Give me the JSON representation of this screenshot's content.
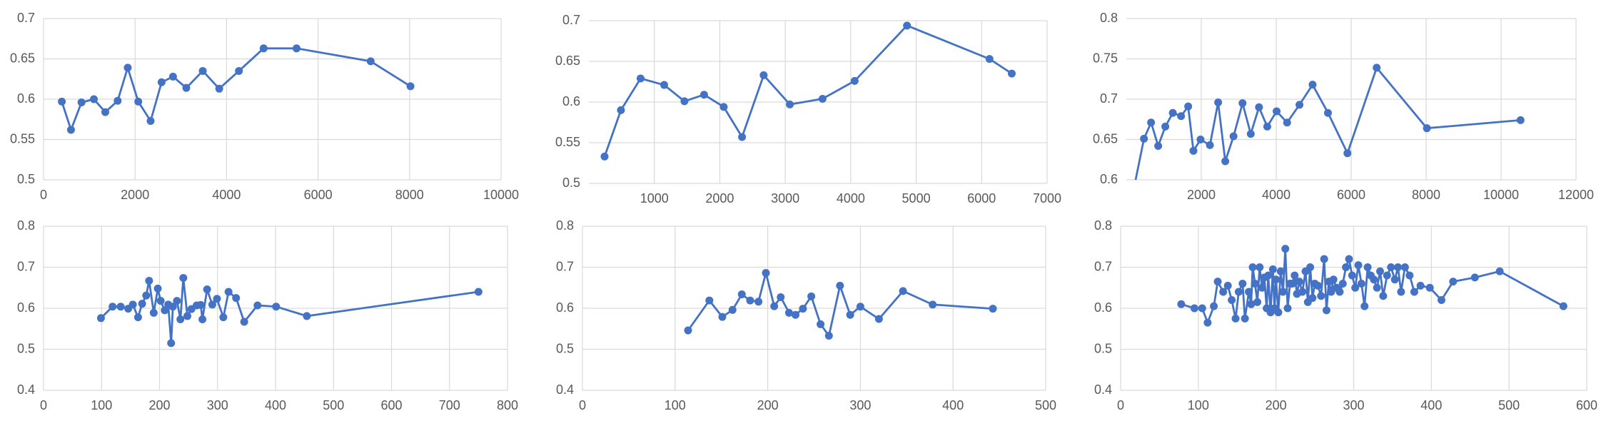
{
  "chart_data": [
    {
      "type": "line",
      "color": "#4472c4",
      "grid": true,
      "x": [
        400,
        600,
        830,
        1100,
        1350,
        1620,
        1840,
        2070,
        2340,
        2580,
        2830,
        3120,
        3480,
        3840,
        4270,
        4810,
        5530,
        7150,
        8020
      ],
      "values": [
        0.597,
        0.562,
        0.596,
        0.6,
        0.584,
        0.598,
        0.639,
        0.597,
        0.573,
        0.621,
        0.628,
        0.614,
        0.635,
        0.613,
        0.635,
        0.663,
        0.663,
        0.647,
        0.616
      ],
      "xlim": [
        0,
        10000
      ],
      "xticks": [
        0,
        2000,
        4000,
        6000,
        8000,
        10000
      ],
      "ylim": [
        0.5,
        0.7
      ],
      "yticks": [
        0.5,
        0.55,
        0.6,
        0.65,
        0.7
      ]
    },
    {
      "type": "line",
      "color": "#4472c4",
      "grid": true,
      "x": [
        240,
        490,
        790,
        1150,
        1460,
        1760,
        2060,
        2340,
        2670,
        3070,
        3570,
        4060,
        4860,
        6120,
        6460
      ],
      "values": [
        0.533,
        0.59,
        0.629,
        0.621,
        0.601,
        0.609,
        0.594,
        0.557,
        0.633,
        0.597,
        0.604,
        0.626,
        0.694,
        0.653,
        0.635
      ],
      "xlim": [
        0,
        7000
      ],
      "xticks": [
        1000,
        2000,
        3000,
        4000,
        5000,
        6000,
        7000
      ],
      "ylim": [
        0.5,
        0.7
      ],
      "yticks": [
        0.5,
        0.55,
        0.6,
        0.65,
        0.7
      ]
    },
    {
      "type": "line",
      "color": "#4472c4",
      "grid": true,
      "x": [
        160,
        470,
        660,
        850,
        1040,
        1240,
        1460,
        1650,
        1790,
        1980,
        2230,
        2450,
        2640,
        2860,
        3100,
        3320,
        3540,
        3760,
        4010,
        4290,
        4620,
        4970,
        5380,
        5900,
        6680,
        8020,
        10520
      ],
      "values": [
        0.58,
        0.651,
        0.671,
        0.642,
        0.666,
        0.683,
        0.679,
        0.691,
        0.636,
        0.65,
        0.643,
        0.696,
        0.623,
        0.654,
        0.695,
        0.657,
        0.69,
        0.666,
        0.685,
        0.671,
        0.693,
        0.718,
        0.683,
        0.633,
        0.739,
        0.664,
        0.674
      ],
      "xlim": [
        0,
        12000
      ],
      "xticks": [
        2000,
        4000,
        6000,
        8000,
        10000,
        12000
      ],
      "ylim": [
        0.6,
        0.8
      ],
      "yticks": [
        0.6,
        0.65,
        0.7,
        0.75,
        0.8
      ]
    },
    {
      "type": "line",
      "color": "#4472c4",
      "grid": true,
      "x": [
        99,
        119,
        133,
        146,
        154,
        163,
        170,
        177,
        182,
        190,
        197,
        202,
        209,
        215,
        220,
        223,
        230,
        236,
        241,
        248,
        255,
        264,
        271,
        274,
        282,
        291,
        299,
        310,
        319,
        332,
        346,
        369,
        401,
        454,
        750
      ],
      "values": [
        0.576,
        0.604,
        0.604,
        0.599,
        0.609,
        0.578,
        0.611,
        0.631,
        0.667,
        0.589,
        0.648,
        0.618,
        0.595,
        0.609,
        0.515,
        0.604,
        0.618,
        0.573,
        0.674,
        0.581,
        0.598,
        0.607,
        0.608,
        0.573,
        0.646,
        0.609,
        0.623,
        0.578,
        0.64,
        0.625,
        0.567,
        0.607,
        0.604,
        0.581,
        0.64
      ],
      "xlim": [
        0,
        800
      ],
      "xticks": [
        0,
        100,
        200,
        300,
        400,
        500,
        600,
        700,
        800
      ],
      "ylim": [
        0.4,
        0.8
      ],
      "yticks": [
        0.4,
        0.5,
        0.6,
        0.7,
        0.8
      ]
    },
    {
      "type": "line",
      "color": "#4472c4",
      "grid": true,
      "x": [
        114,
        137,
        151,
        162,
        172,
        181,
        190,
        198,
        207,
        214,
        223,
        230,
        238,
        247,
        257,
        266,
        278,
        289,
        300,
        320,
        346,
        378,
        443
      ],
      "values": [
        0.546,
        0.619,
        0.579,
        0.596,
        0.634,
        0.619,
        0.616,
        0.686,
        0.605,
        0.627,
        0.589,
        0.584,
        0.599,
        0.629,
        0.561,
        0.533,
        0.655,
        0.584,
        0.604,
        0.574,
        0.642,
        0.609,
        0.599
      ],
      "xlim": [
        0,
        500
      ],
      "xticks": [
        0,
        100,
        200,
        300,
        400,
        500
      ],
      "ylim": [
        0.4,
        0.8
      ],
      "yticks": [
        0.4,
        0.5,
        0.6,
        0.7,
        0.8
      ]
    },
    {
      "type": "line",
      "color": "#4472c4",
      "grid": true,
      "x": [
        78,
        95,
        105,
        112,
        120,
        125,
        132,
        138,
        143,
        148,
        152,
        157,
        160,
        165,
        168,
        170,
        173,
        176,
        179,
        182,
        185,
        188,
        190,
        193,
        196,
        198,
        200,
        203,
        206,
        209,
        212,
        215,
        218,
        221,
        224,
        227,
        230,
        234,
        238,
        241,
        244,
        247,
        250,
        254,
        258,
        262,
        265,
        268,
        271,
        274,
        278,
        282,
        286,
        290,
        294,
        298,
        302,
        306,
        310,
        314,
        318,
        322,
        326,
        330,
        334,
        338,
        343,
        348,
        353,
        357,
        361,
        366,
        372,
        378,
        386,
        398,
        413,
        428,
        456,
        488,
        570
      ],
      "values": [
        0.61,
        0.6,
        0.6,
        0.565,
        0.605,
        0.665,
        0.64,
        0.655,
        0.62,
        0.575,
        0.64,
        0.66,
        0.575,
        0.64,
        0.61,
        0.7,
        0.66,
        0.615,
        0.7,
        0.65,
        0.675,
        0.6,
        0.68,
        0.59,
        0.695,
        0.6,
        0.67,
        0.59,
        0.69,
        0.64,
        0.745,
        0.6,
        0.66,
        0.66,
        0.68,
        0.635,
        0.665,
        0.64,
        0.69,
        0.615,
        0.7,
        0.625,
        0.66,
        0.655,
        0.63,
        0.72,
        0.595,
        0.665,
        0.64,
        0.67,
        0.65,
        0.64,
        0.66,
        0.7,
        0.72,
        0.68,
        0.65,
        0.705,
        0.66,
        0.605,
        0.7,
        0.68,
        0.67,
        0.65,
        0.69,
        0.63,
        0.68,
        0.7,
        0.67,
        0.7,
        0.64,
        0.7,
        0.68,
        0.64,
        0.655,
        0.65,
        0.62,
        0.665,
        0.675,
        0.69,
        0.605
      ],
      "xlim": [
        0,
        600
      ],
      "xticks": [
        0,
        100,
        200,
        300,
        400,
        500,
        600
      ],
      "ylim": [
        0.4,
        0.8
      ],
      "yticks": [
        0.4,
        0.5,
        0.6,
        0.7,
        0.8
      ]
    }
  ]
}
